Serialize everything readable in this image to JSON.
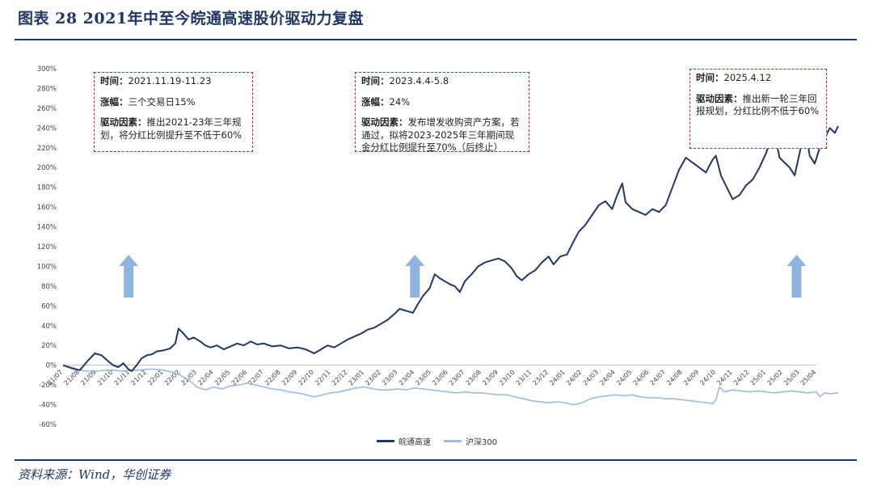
{
  "header": {
    "title": "图表 28   2021年中至今皖通高速股价驱动力复盘"
  },
  "footer": {
    "source": "资料来源：Wind，华创证券"
  },
  "colors": {
    "primary": "#1f3864",
    "secondary": "#9dbbdf",
    "arrow": "#8fb4de",
    "annotation_border": "#e8121b"
  },
  "annotations": [
    {
      "time_label": "时间：",
      "time": "2021.11.19-11.23",
      "gain_label": "涨幅：",
      "gain": "三个交易日15%",
      "driver_label": "驱动因素：",
      "driver": "推出2021-23年三年规划，将分红比例提升至不低于60%"
    },
    {
      "time_label": "时间：",
      "time": "2023.4.4-5.8",
      "gain_label": "涨幅：",
      "gain": "24%",
      "driver_label": "驱动因素：",
      "driver": "发布增发收购资产方案，若通过，拟将2023-2025年三年期间现金分红比例提升至70%（后终止）"
    },
    {
      "time_label": "时间：",
      "time": "2025.4.12",
      "driver_label": "驱动因素：",
      "driver": "推出新一轮三年回报规划，分红比例不低于60%"
    }
  ],
  "chart_data": {
    "type": "line",
    "ylim": [
      -0.6,
      3.0
    ],
    "ytick_step": 0.2,
    "ytick_labels": [
      "300%",
      "280%",
      "260%",
      "240%",
      "220%",
      "200%",
      "180%",
      "160%",
      "140%",
      "120%",
      "100%",
      "80%",
      "60%",
      "40%",
      "20%",
      "0%",
      "-20%",
      "-40%",
      "-60%"
    ],
    "x_tick_labels": [
      "21/07",
      "21/08",
      "21/09",
      "21/10",
      "21/11",
      "21/12",
      "22/01",
      "22/02",
      "22/03",
      "22/04",
      "22/05",
      "22/06",
      "22/07",
      "22/08",
      "22/09",
      "22/10",
      "22/11",
      "22/12",
      "23/01",
      "23/02",
      "23/03",
      "23/04",
      "23/05",
      "23/06",
      "23/07",
      "23/08",
      "23/09",
      "23/10",
      "23/11",
      "23/12",
      "24/01",
      "24/02",
      "24/03",
      "24/04",
      "24/05",
      "24/06",
      "24/07",
      "24/08",
      "24/09",
      "24/10",
      "24/11",
      "24/12",
      "25/01",
      "25/02",
      "25/03",
      "25/04"
    ],
    "legend_position": "bottom",
    "grid": false,
    "series": [
      {
        "name": "皖通高速",
        "color": "#1f3864",
        "points": [
          [
            0,
            0.0
          ],
          [
            0.5,
            -0.03
          ],
          [
            1.0,
            -0.05
          ],
          [
            1.5,
            0.05
          ],
          [
            1.9,
            0.12
          ],
          [
            2.3,
            0.1
          ],
          [
            2.7,
            0.04
          ],
          [
            3.0,
            0.0
          ],
          [
            3.3,
            -0.02
          ],
          [
            3.6,
            0.02
          ],
          [
            3.9,
            -0.04
          ],
          [
            4.1,
            -0.06
          ],
          [
            4.4,
            0.0
          ],
          [
            4.7,
            0.07
          ],
          [
            5.0,
            0.1
          ],
          [
            5.3,
            0.11
          ],
          [
            5.6,
            0.14
          ],
          [
            6.0,
            0.15
          ],
          [
            6.4,
            0.17
          ],
          [
            6.7,
            0.22
          ],
          [
            6.9,
            0.37
          ],
          [
            7.2,
            0.32
          ],
          [
            7.5,
            0.26
          ],
          [
            7.8,
            0.28
          ],
          [
            8.2,
            0.24
          ],
          [
            8.5,
            0.2
          ],
          [
            8.8,
            0.18
          ],
          [
            9.2,
            0.2
          ],
          [
            9.6,
            0.16
          ],
          [
            10.0,
            0.19
          ],
          [
            10.4,
            0.22
          ],
          [
            10.8,
            0.2
          ],
          [
            11.2,
            0.24
          ],
          [
            11.6,
            0.21
          ],
          [
            12.0,
            0.22
          ],
          [
            12.5,
            0.19
          ],
          [
            13.0,
            0.2
          ],
          [
            13.5,
            0.17
          ],
          [
            14.0,
            0.18
          ],
          [
            14.5,
            0.16
          ],
          [
            15.0,
            0.12
          ],
          [
            15.4,
            0.16
          ],
          [
            15.8,
            0.2
          ],
          [
            16.2,
            0.18
          ],
          [
            16.6,
            0.22
          ],
          [
            17.0,
            0.26
          ],
          [
            17.4,
            0.29
          ],
          [
            17.8,
            0.32
          ],
          [
            18.2,
            0.36
          ],
          [
            18.6,
            0.38
          ],
          [
            19.0,
            0.42
          ],
          [
            19.4,
            0.46
          ],
          [
            19.8,
            0.52
          ],
          [
            20.1,
            0.57
          ],
          [
            20.5,
            0.55
          ],
          [
            20.9,
            0.53
          ],
          [
            21.2,
            0.62
          ],
          [
            21.5,
            0.7
          ],
          [
            21.9,
            0.78
          ],
          [
            22.2,
            0.92
          ],
          [
            22.5,
            0.88
          ],
          [
            22.8,
            0.85
          ],
          [
            23.1,
            0.82
          ],
          [
            23.4,
            0.8
          ],
          [
            23.7,
            0.74
          ],
          [
            24.0,
            0.85
          ],
          [
            24.4,
            0.92
          ],
          [
            24.8,
            1.0
          ],
          [
            25.2,
            1.04
          ],
          [
            25.6,
            1.06
          ],
          [
            26.0,
            1.08
          ],
          [
            26.4,
            1.05
          ],
          [
            26.8,
            0.98
          ],
          [
            27.1,
            0.9
          ],
          [
            27.4,
            0.86
          ],
          [
            27.8,
            0.92
          ],
          [
            28.2,
            0.96
          ],
          [
            28.6,
            1.04
          ],
          [
            29.0,
            1.1
          ],
          [
            29.3,
            1.02
          ],
          [
            29.7,
            1.1
          ],
          [
            30.1,
            1.12
          ],
          [
            30.4,
            1.22
          ],
          [
            30.8,
            1.35
          ],
          [
            31.2,
            1.42
          ],
          [
            31.6,
            1.52
          ],
          [
            32.0,
            1.62
          ],
          [
            32.4,
            1.66
          ],
          [
            32.8,
            1.58
          ],
          [
            33.1,
            1.72
          ],
          [
            33.4,
            1.84
          ],
          [
            33.6,
            1.65
          ],
          [
            34.0,
            1.58
          ],
          [
            34.4,
            1.55
          ],
          [
            34.8,
            1.52
          ],
          [
            35.2,
            1.58
          ],
          [
            35.6,
            1.55
          ],
          [
            36.0,
            1.62
          ],
          [
            36.4,
            1.8
          ],
          [
            36.8,
            1.98
          ],
          [
            37.2,
            2.1
          ],
          [
            37.6,
            2.05
          ],
          [
            38.0,
            2.0
          ],
          [
            38.4,
            1.95
          ],
          [
            38.8,
            2.08
          ],
          [
            39.0,
            2.12
          ],
          [
            39.3,
            1.92
          ],
          [
            39.7,
            1.78
          ],
          [
            40.0,
            1.68
          ],
          [
            40.4,
            1.72
          ],
          [
            40.8,
            1.82
          ],
          [
            41.2,
            1.88
          ],
          [
            41.6,
            2.0
          ],
          [
            42.0,
            2.15
          ],
          [
            42.3,
            2.3
          ],
          [
            42.5,
            2.35
          ],
          [
            42.8,
            2.1
          ],
          [
            43.1,
            2.05
          ],
          [
            43.4,
            2.0
          ],
          [
            43.7,
            1.92
          ],
          [
            44.0,
            2.15
          ],
          [
            44.3,
            2.42
          ],
          [
            44.6,
            2.12
          ],
          [
            44.9,
            2.04
          ],
          [
            45.2,
            2.2
          ],
          [
            45.5,
            2.3
          ],
          [
            45.8,
            2.4
          ],
          [
            46.1,
            2.35
          ],
          [
            46.3,
            2.42
          ]
        ]
      },
      {
        "name": "沪深300",
        "color": "#9dbbdf",
        "points": [
          [
            0,
            0.0
          ],
          [
            0.5,
            -0.02
          ],
          [
            1.0,
            -0.05
          ],
          [
            1.5,
            -0.06
          ],
          [
            2.0,
            -0.06
          ],
          [
            2.5,
            -0.05
          ],
          [
            3.0,
            -0.05
          ],
          [
            3.5,
            -0.06
          ],
          [
            4.0,
            -0.05
          ],
          [
            4.5,
            -0.05
          ],
          [
            5.0,
            -0.04
          ],
          [
            5.5,
            -0.04
          ],
          [
            6.0,
            -0.05
          ],
          [
            6.5,
            -0.07
          ],
          [
            7.0,
            -0.1
          ],
          [
            7.5,
            -0.15
          ],
          [
            8.0,
            -0.22
          ],
          [
            8.5,
            -0.25
          ],
          [
            9.0,
            -0.22
          ],
          [
            9.5,
            -0.24
          ],
          [
            10.0,
            -0.21
          ],
          [
            10.5,
            -0.2
          ],
          [
            11.0,
            -0.18
          ],
          [
            11.5,
            -0.2
          ],
          [
            12.0,
            -0.22
          ],
          [
            12.5,
            -0.24
          ],
          [
            13.0,
            -0.25
          ],
          [
            13.5,
            -0.27
          ],
          [
            14.0,
            -0.28
          ],
          [
            14.5,
            -0.3
          ],
          [
            15.0,
            -0.32
          ],
          [
            15.5,
            -0.3
          ],
          [
            16.0,
            -0.28
          ],
          [
            16.5,
            -0.27
          ],
          [
            17.0,
            -0.25
          ],
          [
            17.5,
            -0.23
          ],
          [
            18.0,
            -0.22
          ],
          [
            18.5,
            -0.24
          ],
          [
            19.0,
            -0.25
          ],
          [
            19.5,
            -0.25
          ],
          [
            20.0,
            -0.24
          ],
          [
            20.5,
            -0.25
          ],
          [
            21.0,
            -0.23
          ],
          [
            21.5,
            -0.24
          ],
          [
            22.0,
            -0.25
          ],
          [
            22.5,
            -0.26
          ],
          [
            23.0,
            -0.27
          ],
          [
            23.5,
            -0.28
          ],
          [
            24.0,
            -0.27
          ],
          [
            24.5,
            -0.28
          ],
          [
            25.0,
            -0.28
          ],
          [
            25.5,
            -0.29
          ],
          [
            26.0,
            -0.3
          ],
          [
            26.5,
            -0.3
          ],
          [
            27.0,
            -0.32
          ],
          [
            27.5,
            -0.34
          ],
          [
            28.0,
            -0.36
          ],
          [
            28.5,
            -0.37
          ],
          [
            29.0,
            -0.38
          ],
          [
            29.5,
            -0.37
          ],
          [
            30.0,
            -0.38
          ],
          [
            30.5,
            -0.4
          ],
          [
            31.0,
            -0.38
          ],
          [
            31.5,
            -0.34
          ],
          [
            32.0,
            -0.32
          ],
          [
            32.5,
            -0.31
          ],
          [
            33.0,
            -0.3
          ],
          [
            33.5,
            -0.31
          ],
          [
            34.0,
            -0.3
          ],
          [
            34.5,
            -0.32
          ],
          [
            35.0,
            -0.33
          ],
          [
            35.5,
            -0.33
          ],
          [
            36.0,
            -0.34
          ],
          [
            36.5,
            -0.34
          ],
          [
            37.0,
            -0.35
          ],
          [
            37.5,
            -0.36
          ],
          [
            38.0,
            -0.37
          ],
          [
            38.5,
            -0.38
          ],
          [
            38.8,
            -0.39
          ],
          [
            39.0,
            -0.35
          ],
          [
            39.2,
            -0.22
          ],
          [
            39.5,
            -0.27
          ],
          [
            40.0,
            -0.25
          ],
          [
            40.5,
            -0.26
          ],
          [
            41.0,
            -0.27
          ],
          [
            41.5,
            -0.26
          ],
          [
            42.0,
            -0.27
          ],
          [
            42.5,
            -0.28
          ],
          [
            43.0,
            -0.27
          ],
          [
            43.5,
            -0.26
          ],
          [
            44.0,
            -0.27
          ],
          [
            44.5,
            -0.28
          ],
          [
            45.0,
            -0.27
          ],
          [
            45.2,
            -0.32
          ],
          [
            45.5,
            -0.28
          ],
          [
            45.8,
            -0.29
          ],
          [
            46.3,
            -0.28
          ]
        ]
      }
    ],
    "up_arrows_after_month_index": [
      4.4,
      21.5,
      44.3
    ]
  }
}
